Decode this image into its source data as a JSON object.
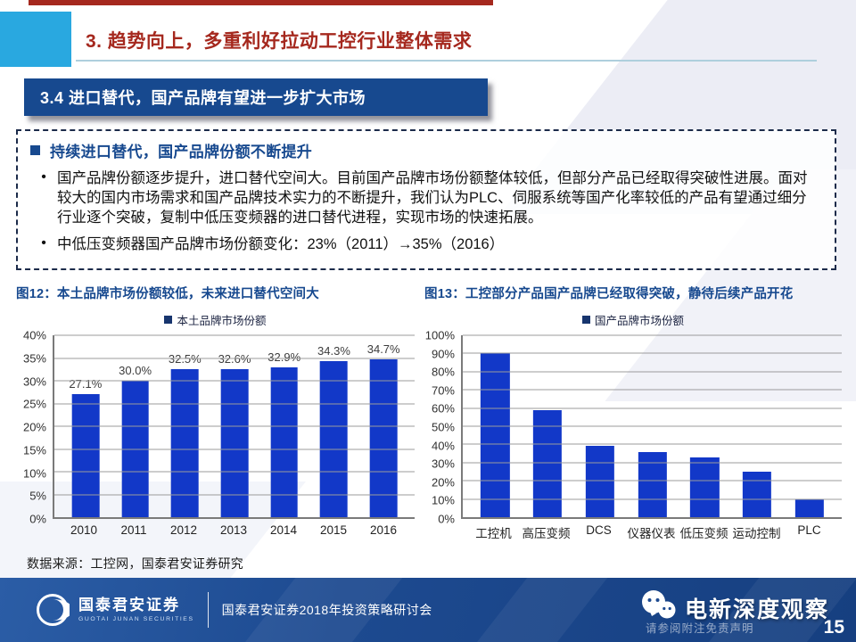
{
  "header": {
    "section_title": "3. 趋势向上，多重利好拉动工控行业整体需求",
    "subsection_title": "3.4 进口替代，国产品牌有望进一步扩大市场"
  },
  "highlight_box": {
    "heading": "持续进口替代，国产品牌份额不断提升",
    "bullets": [
      "国产品牌份额逐步提升，进口替代空间大。目前国产品牌市场份额整体较低，但部分产品已经取得突破性进展。面对较大的国内市场需求和国产品牌技术实力的不断提升，我们认为PLC、伺服系统等国产化率较低的产品有望通过细分行业逐个突破，复制中低压变频器的进口替代进程，实现市场的快速拓展。",
      "中低压变频器国产品牌市场份额变化：23%（2011）→35%（2016）"
    ]
  },
  "chart_data": [
    {
      "type": "bar",
      "title": "图12：本土品牌市场份额较低，未来进口替代空间大",
      "legend": "本土品牌市场份额",
      "categories": [
        "2010",
        "2011",
        "2012",
        "2013",
        "2014",
        "2015",
        "2016"
      ],
      "values": [
        27.1,
        30.0,
        32.5,
        32.6,
        32.9,
        34.3,
        34.7
      ],
      "data_labels": [
        "27.1%",
        "30.0%",
        "32.5%",
        "32.6%",
        "32.9%",
        "34.3%",
        "34.7%"
      ],
      "ylabel": "",
      "xlabel": "",
      "ylim": [
        0,
        40
      ],
      "ytick_step": 5,
      "grid": true,
      "legend_position": "top",
      "bar_color": "#1238c8"
    },
    {
      "type": "bar",
      "title": "图13：工控部分产品国产品牌已经取得突破，静待后续产品开花",
      "legend": "国产品牌市场份额",
      "categories": [
        "工控机",
        "高压变频",
        "DCS",
        "仪器仪表",
        "低压变频",
        "运动控制",
        "PLC"
      ],
      "values": [
        90,
        59,
        39,
        36,
        33,
        25,
        10
      ],
      "data_labels": null,
      "ylabel": "",
      "xlabel": "",
      "ylim": [
        0,
        100
      ],
      "ytick_step": 10,
      "grid": true,
      "legend_position": "top",
      "bar_color": "#1238c8"
    }
  ],
  "footnote": "数据来源：工控网，国泰君安证券研究",
  "footer": {
    "logo_cn": "国泰君安证券",
    "logo_en": "GUOTAI JUNAN SECURITIES",
    "event": "国泰君安证券2018年投资策略研讨会",
    "disclaimer": "请参阅附注免责声明",
    "watermark": "电新深度观察",
    "page_number": "15"
  },
  "colors": {
    "accent_red": "#a5281e",
    "cyan_block": "#29a8e0",
    "banner_blue": "#17498f",
    "bar_blue": "#1238c8",
    "footer_blue": "#1d4a90"
  }
}
